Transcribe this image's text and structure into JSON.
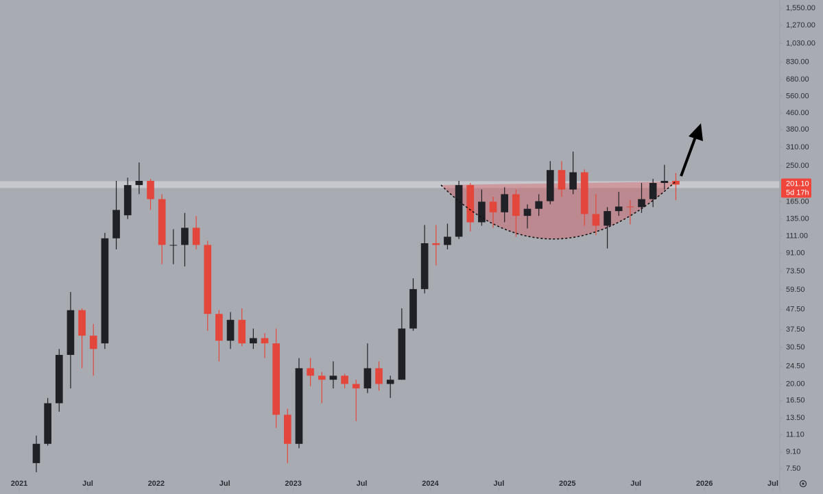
{
  "chart_data": {
    "type": "candlestick",
    "x": [
      "2021-02",
      "2021-03",
      "2021-04",
      "2021-05",
      "2021-06",
      "2021-07",
      "2021-08",
      "2021-09",
      "2021-10",
      "2021-11",
      "2021-12",
      "2022-01",
      "2022-02",
      "2022-03",
      "2022-04",
      "2022-05",
      "2022-06",
      "2022-07",
      "2022-08",
      "2022-09",
      "2022-10",
      "2022-11",
      "2022-12",
      "2023-01",
      "2023-02",
      "2023-03",
      "2023-04",
      "2023-05",
      "2023-06",
      "2023-07",
      "2023-08",
      "2023-09",
      "2023-10",
      "2023-11",
      "2023-12",
      "2024-01",
      "2024-02",
      "2024-03",
      "2024-04",
      "2024-05",
      "2024-06",
      "2024-07",
      "2024-08",
      "2024-09",
      "2024-10",
      "2024-11",
      "2024-12",
      "2025-01",
      "2025-02",
      "2025-03",
      "2025-04",
      "2025-05",
      "2025-06",
      "2025-07",
      "2025-08",
      "2025-09",
      "2025-10"
    ],
    "open": [
      8,
      10,
      16,
      28,
      47,
      35,
      32,
      108,
      141,
      200,
      210,
      170,
      100,
      100,
      122,
      100,
      45,
      33,
      42,
      32,
      34,
      32,
      14,
      10,
      24,
      22,
      21,
      22,
      20,
      19,
      24,
      20,
      21,
      38,
      60,
      102,
      100,
      110,
      200,
      130,
      165,
      146,
      180,
      140,
      152,
      166,
      238,
      190,
      232,
      143,
      125,
      148,
      156,
      155,
      170,
      205,
      210
    ],
    "high": [
      11,
      17,
      30,
      58,
      48,
      40,
      115,
      210,
      218,
      260,
      215,
      180,
      120,
      145,
      140,
      105,
      47,
      46,
      48,
      38,
      36,
      38,
      15,
      27,
      27,
      23,
      26,
      22.5,
      21,
      32,
      26,
      22,
      48,
      68,
      126,
      126,
      128,
      210,
      205,
      190,
      175,
      195,
      190,
      160,
      180,
      264,
      264,
      295,
      240,
      180,
      155,
      185,
      168,
      205,
      215,
      253,
      230
    ],
    "low": [
      7.2,
      9.8,
      14.5,
      19,
      24,
      22,
      30,
      95,
      135,
      180,
      150,
      80,
      80,
      78,
      95,
      37,
      26,
      30,
      31,
      30,
      27,
      12,
      8,
      9.5,
      19.5,
      16,
      19,
      19,
      13,
      18,
      18.5,
      17,
      21,
      37,
      57,
      79,
      95,
      107,
      117,
      125,
      122,
      130,
      110,
      121,
      140,
      160,
      175,
      180,
      125,
      112,
      96,
      140,
      127,
      145,
      155,
      190,
      168
    ],
    "close": [
      10,
      16,
      28,
      47,
      35,
      30,
      108,
      150,
      200,
      210,
      170,
      100,
      100,
      122,
      100,
      45,
      33,
      42,
      32,
      34,
      32,
      14,
      10,
      24,
      22,
      21,
      22,
      20,
      19,
      24,
      20,
      21,
      38,
      60,
      102,
      100,
      110,
      200,
      130,
      165,
      146,
      180,
      140,
      152,
      166,
      238,
      190,
      232,
      143,
      125,
      148,
      156,
      155,
      170,
      205,
      210,
      201.1
    ],
    "up_color": "#1f2127",
    "down_color": "#e3473b",
    "log_scale": true,
    "ylim": [
      5.82,
      1705
    ],
    "yticks": [
      {
        "value": 7.5,
        "label": "7.50"
      },
      {
        "value": 9.1,
        "label": "9.10"
      },
      {
        "value": 11.1,
        "label": "11.10"
      },
      {
        "value": 13.5,
        "label": "13.50"
      },
      {
        "value": 16.5,
        "label": "16.50"
      },
      {
        "value": 20,
        "label": "20.00"
      },
      {
        "value": 24.5,
        "label": "24.50"
      },
      {
        "value": 30.5,
        "label": "30.50"
      },
      {
        "value": 37.5,
        "label": "37.50"
      },
      {
        "value": 47.5,
        "label": "47.50"
      },
      {
        "value": 59.5,
        "label": "59.50"
      },
      {
        "value": 73.5,
        "label": "73.50"
      },
      {
        "value": 91,
        "label": "91.00"
      },
      {
        "value": 111,
        "label": "111.00"
      },
      {
        "value": 135,
        "label": "135.00"
      },
      {
        "value": 165,
        "label": "165.00"
      },
      {
        "value": 250,
        "label": "250.00"
      },
      {
        "value": 310,
        "label": "310.00"
      },
      {
        "value": 380,
        "label": "380.00"
      },
      {
        "value": 460,
        "label": "460.00"
      },
      {
        "value": 560,
        "label": "560.00"
      },
      {
        "value": 680,
        "label": "680.00"
      },
      {
        "value": 830,
        "label": "830.00"
      },
      {
        "value": 1030,
        "label": "1,030.00"
      },
      {
        "value": 1270,
        "label": "1,270.00"
      },
      {
        "value": 1550,
        "label": "1,550.00"
      }
    ],
    "xlim": [
      "2021-01",
      "2026-07"
    ],
    "xticks": [
      {
        "value": "2021-01",
        "label": "2021"
      },
      {
        "value": "2021-07",
        "label": "Jul"
      },
      {
        "value": "2022-01",
        "label": "2022"
      },
      {
        "value": "2022-07",
        "label": "Jul"
      },
      {
        "value": "2023-01",
        "label": "2023"
      },
      {
        "value": "2023-07",
        "label": "Jul"
      },
      {
        "value": "2024-01",
        "label": "2024"
      },
      {
        "value": "2024-07",
        "label": "Jul"
      },
      {
        "value": "2025-01",
        "label": "2025"
      },
      {
        "value": "2025-07",
        "label": "Jul"
      },
      {
        "value": "2026-01",
        "label": "2026"
      },
      {
        "value": "2026-07",
        "label": "Jul"
      }
    ],
    "current_price": {
      "value": 201.1,
      "label": "201.10"
    },
    "countdown": "5d 17h",
    "price_label_color": "#f0453a"
  }
}
